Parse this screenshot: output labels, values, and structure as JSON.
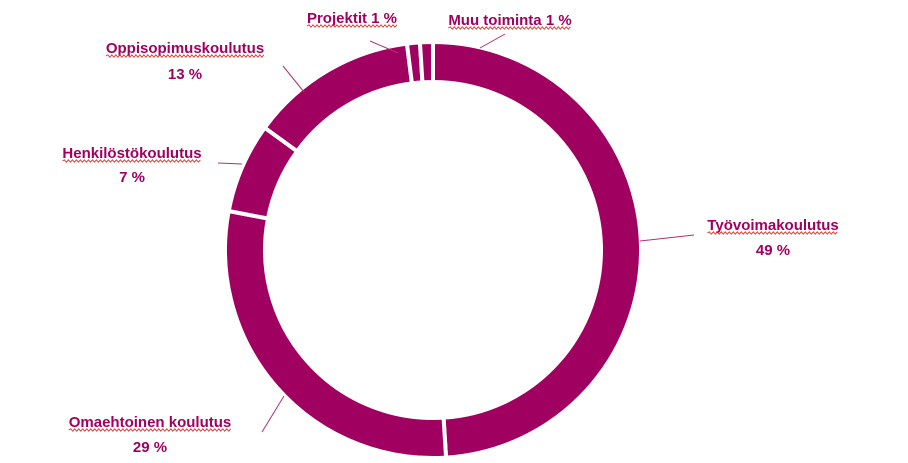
{
  "chart_data": {
    "type": "pie",
    "donut": true,
    "title": "",
    "legend": "none",
    "data_labels": "outside-with-leader-lines",
    "colors": {
      "slice": "#a00060",
      "label_text": "#a00060",
      "leader_line": "#b0306e",
      "slice_border": "#ffffff",
      "spellcheck_underline": "#d9342b"
    },
    "slices": [
      {
        "label": "Työvoimakoulutus",
        "value": 49,
        "value_text": "49 %"
      },
      {
        "label": "Omaehtoinen koulutus",
        "value": 29,
        "value_text": "29 %"
      },
      {
        "label": "Henkilöstökoulutus",
        "value": 7,
        "value_text": "7 %"
      },
      {
        "label": "Oppisopimuskoulutus",
        "value": 13,
        "value_text": "13 %"
      },
      {
        "label": "Projektit",
        "value": 1,
        "value_text": "1 %"
      },
      {
        "label": "Muu toiminta",
        "value": 1,
        "value_text": "1 %"
      }
    ]
  }
}
